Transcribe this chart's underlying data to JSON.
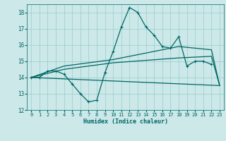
{
  "xlabel": "Humidex (Indice chaleur)",
  "xlim": [
    -0.5,
    23.5
  ],
  "ylim": [
    12,
    18.5
  ],
  "yticks": [
    12,
    13,
    14,
    15,
    16,
    17,
    18
  ],
  "xticks": [
    0,
    1,
    2,
    3,
    4,
    5,
    6,
    7,
    8,
    9,
    10,
    11,
    12,
    13,
    14,
    15,
    16,
    17,
    18,
    19,
    20,
    21,
    22,
    23
  ],
  "bg_color": "#cce8e8",
  "line_color": "#006666",
  "grid_color": "#99cccc",
  "lines": [
    {
      "x": [
        0,
        1,
        2,
        3,
        4,
        5,
        6,
        7,
        8,
        9,
        10,
        11,
        12,
        13,
        14,
        15,
        16,
        17,
        18,
        19,
        20,
        21,
        22
      ],
      "y": [
        14.0,
        14.0,
        14.4,
        14.4,
        14.2,
        13.6,
        13.0,
        12.5,
        12.6,
        14.3,
        15.6,
        17.1,
        18.3,
        18.0,
        17.1,
        16.6,
        15.9,
        15.8,
        16.5,
        14.7,
        15.0,
        15.0,
        14.8
      ],
      "marker": "+",
      "lw": 0.9
    },
    {
      "x": [
        0,
        4,
        10,
        18,
        22,
        23
      ],
      "y": [
        14.0,
        14.7,
        15.1,
        15.9,
        15.7,
        13.5
      ],
      "marker": null,
      "lw": 0.9
    },
    {
      "x": [
        0,
        4,
        10,
        18,
        22,
        23
      ],
      "y": [
        14.0,
        14.5,
        14.9,
        15.2,
        15.3,
        13.5
      ],
      "marker": null,
      "lw": 0.9
    },
    {
      "x": [
        0,
        23
      ],
      "y": [
        14.0,
        13.5
      ],
      "marker": null,
      "lw": 0.9
    }
  ]
}
